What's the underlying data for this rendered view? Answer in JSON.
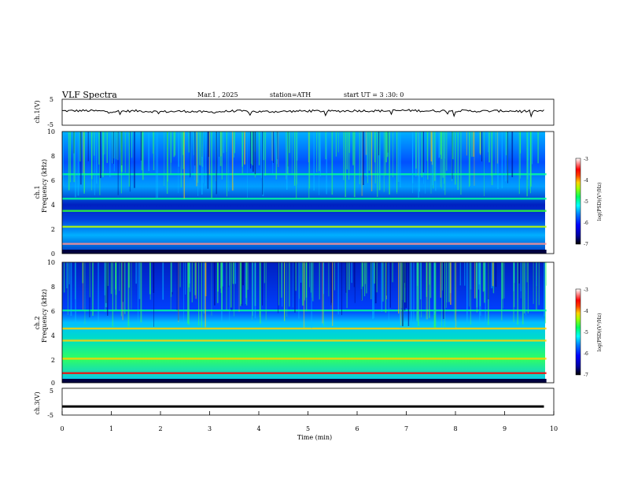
{
  "header": {
    "title": "VLF Spectra",
    "date": "Mar.1 , 2025",
    "station": "station=ATH",
    "start": "start UT =  3 :30: 0"
  },
  "colorbar": {
    "label": "log(PSD)(V²/Hz)",
    "ticks": [
      "-3",
      "-4",
      "-5",
      "-6",
      "-7"
    ]
  },
  "chart_data": [
    {
      "type": "line",
      "ylabel": "ch.1(V)",
      "ylim": [
        -5,
        5
      ],
      "yticks": [
        "5",
        "-5"
      ],
      "x": [
        0,
        0.5,
        1,
        1.5,
        2,
        2.5,
        3,
        3.5,
        4,
        4.5,
        5,
        5.5,
        6,
        6.5,
        7,
        7.5,
        8,
        8.5,
        9,
        9.5,
        9.8
      ],
      "values": [
        0.5,
        0.6,
        0.3,
        0.5,
        0.2,
        0.4,
        0.0,
        0.5,
        0.2,
        0.3,
        0.5,
        0.4,
        0.6,
        0.5,
        0.7,
        0.5,
        0.6,
        0.4,
        0.5,
        0.4,
        0.5
      ]
    },
    {
      "type": "heatmap",
      "ylabel": "Frequency (kHz)",
      "ylabel2": "ch.1",
      "ylim": [
        0,
        10
      ],
      "yticks": [
        "10",
        "8",
        "6",
        "4",
        "2",
        "0"
      ],
      "clim": [
        -7,
        -3
      ],
      "bands": [
        {
          "f": 0.8,
          "psd": -3.5
        },
        {
          "f": 2.2,
          "psd": -4.8
        },
        {
          "f": 3.5,
          "psd": -5.0
        },
        {
          "f": 4.5,
          "psd": -5.2
        },
        {
          "f": 6.5,
          "psd": -5.4
        }
      ]
    },
    {
      "type": "heatmap",
      "ylabel": "Frequency (kHz)",
      "ylabel2": "ch.2",
      "ylim": [
        0,
        10
      ],
      "yticks": [
        "10",
        "8",
        "6",
        "4",
        "2",
        "0"
      ],
      "clim": [
        -7,
        -3
      ],
      "bands": [
        {
          "f": 0.8,
          "psd": -3.6
        },
        {
          "f": 2.0,
          "psd": -4.2
        },
        {
          "f": 3.5,
          "psd": -4.3
        },
        {
          "f": 4.5,
          "psd": -4.4
        },
        {
          "f": 6.0,
          "psd": -5.4
        }
      ]
    },
    {
      "type": "line",
      "ylabel": "ch.3(V)",
      "ylim": [
        -5,
        5
      ],
      "yticks": [
        "5",
        "-5"
      ],
      "x": [
        0,
        9.8
      ],
      "values": [
        -1.8,
        -1.8
      ]
    }
  ],
  "xaxis": {
    "label": "Time  (min)",
    "xlim": [
      0,
      10
    ],
    "ticks": [
      "0",
      "1",
      "2",
      "3",
      "4",
      "5",
      "6",
      "7",
      "8",
      "9",
      "10"
    ]
  },
  "colors": {
    "colormap": [
      "#000000",
      "#0000a0",
      "#0000ff",
      "#0060ff",
      "#00c0ff",
      "#00ffa0",
      "#30ff30",
      "#c0ff00",
      "#ffd000",
      "#ff6000",
      "#ff0000",
      "#ff9090",
      "#ffffff"
    ]
  }
}
